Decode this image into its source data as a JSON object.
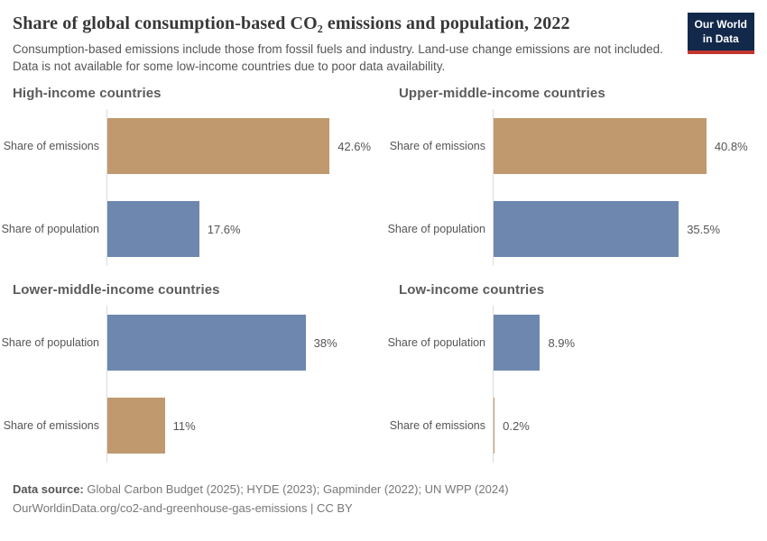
{
  "header": {
    "title": "Share of global consumption-based CO₂ emissions and population, 2022",
    "subtitle": "Consumption-based emissions include those from fossil fuels and industry. Land-use change emissions are not included. Data is not available for some low-income countries due to poor data availability.",
    "logo": {
      "line1": "Our World",
      "line2": "in Data"
    }
  },
  "chart_data": {
    "type": "bar",
    "orientation": "horizontal",
    "title": "Share of global consumption-based CO₂ emissions and population, 2022",
    "xlabel": "",
    "ylabel": "",
    "xlim": [
      0,
      50
    ],
    "grid": false,
    "legend": "none",
    "unit": "%",
    "colors": {
      "emissions": "#c0996e",
      "population": "#6e87af"
    },
    "facets": [
      {
        "title": "High-income countries",
        "bars": [
          {
            "label": "Share of emissions",
            "series": "emissions",
            "value": 42.6,
            "display": "42.6%"
          },
          {
            "label": "Share of population",
            "series": "population",
            "value": 17.6,
            "display": "17.6%"
          }
        ]
      },
      {
        "title": "Upper-middle-income countries",
        "bars": [
          {
            "label": "Share of emissions",
            "series": "emissions",
            "value": 40.8,
            "display": "40.8%"
          },
          {
            "label": "Share of population",
            "series": "population",
            "value": 35.5,
            "display": "35.5%"
          }
        ]
      },
      {
        "title": "Lower-middle-income countries",
        "bars": [
          {
            "label": "Share of population",
            "series": "population",
            "value": 38,
            "display": "38%"
          },
          {
            "label": "Share of emissions",
            "series": "emissions",
            "value": 11,
            "display": "11%"
          }
        ]
      },
      {
        "title": "Low-income countries",
        "bars": [
          {
            "label": "Share of population",
            "series": "population",
            "value": 8.9,
            "display": "8.9%"
          },
          {
            "label": "Share of emissions",
            "series": "emissions",
            "value": 0.2,
            "display": "0.2%"
          }
        ]
      }
    ]
  },
  "footer": {
    "datasource_label": "Data source:",
    "datasource_text": " Global Carbon Budget (2025); HYDE (2023); Gapminder (2022); UN WPP (2024)",
    "link_line": "OurWorldinData.org/co2-and-greenhouse-gas-emissions | CC BY"
  }
}
